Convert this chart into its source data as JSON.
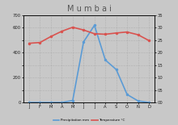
{
  "title": "M u m b a i",
  "months": [
    "J",
    "F",
    "M",
    "A",
    "M",
    "J",
    "J",
    "A",
    "S",
    "O",
    "N",
    "D"
  ],
  "rainfall_mm": [
    0.6,
    0.6,
    0.3,
    0.6,
    16,
    485,
    617,
    340,
    264,
    64,
    13,
    0.5
  ],
  "temp_c": [
    23.7,
    24.0,
    26.4,
    28.5,
    30.1,
    29.0,
    27.5,
    27.3,
    27.8,
    28.2,
    27.1,
    24.8
  ],
  "rain_color": "#5b9bd5",
  "temp_color": "#d9534f",
  "ylim_rain": [
    0,
    700
  ],
  "ylim_temp": [
    0,
    35
  ],
  "rain_yticks": [
    0,
    100,
    200,
    300,
    400,
    500,
    600,
    700
  ],
  "rain_yticklabels": [
    "0",
    "",
    "200",
    "",
    "400",
    "",
    "600",
    "700"
  ],
  "temp_yticks": [
    0,
    5,
    10,
    15,
    20,
    25,
    30,
    35
  ],
  "temp_yticklabels": [
    "00",
    "05",
    "10",
    "15",
    "20",
    "25",
    "30",
    "35"
  ],
  "bg_color": "#c8c8c8",
  "title_fontsize": 7,
  "tick_fontsize": 3.8,
  "legend_rain": "Precipitation mm",
  "legend_temp": "Temperature °C",
  "grid_color": "#999999"
}
